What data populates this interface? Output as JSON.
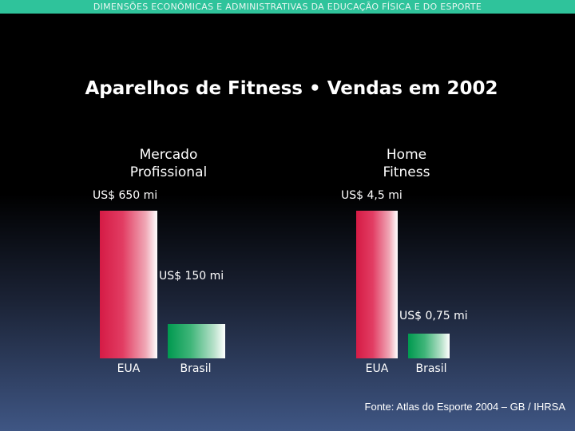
{
  "header": {
    "text": "DIMENSÕES ECONÔMICAS E ADMINISTRATIVAS DA EDUCAÇÃO FÍSICA E DO ESPORTE"
  },
  "colors": {
    "header_band": "#2fc39b",
    "eua_bar": "#d51b45",
    "brasil_bar": "#00994f"
  },
  "source": "Fonte: Atlas do Esporte 2004 – GB / IHRSA",
  "chart_data": {
    "type": "bar",
    "title": "Aparelhos de Fitness • Vendas em 2002",
    "panels": [
      {
        "title_line1": "Mercado",
        "title_line2": "Profissional",
        "unit": "US$ mi",
        "categories": [
          "EUA",
          "Brasil"
        ],
        "values": [
          650,
          150
        ],
        "data_labels": [
          "US$ 650 mi",
          "US$ 150 mi"
        ]
      },
      {
        "title_line1": "Home",
        "title_line2": "Fitness",
        "unit": "US$ mi",
        "categories": [
          "EUA",
          "Brasil"
        ],
        "values": [
          4.5,
          0.75
        ],
        "data_labels": [
          "US$ 4,5 mi",
          "US$ 0,75 mi"
        ]
      }
    ]
  }
}
